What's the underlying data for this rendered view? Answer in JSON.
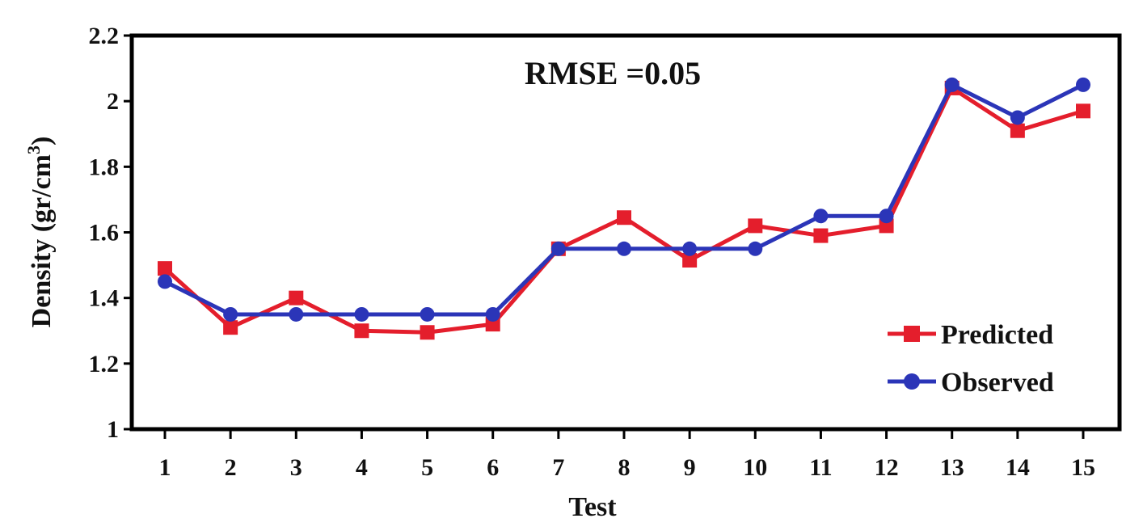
{
  "chart_data": {
    "type": "line",
    "xlabel": "Test",
    "ylabel_main": "Density (gr/cm",
    "ylabel_sup": "3",
    "ylabel_close": ")",
    "annotation": "RMSE =0.05",
    "x": [
      1,
      2,
      3,
      4,
      5,
      6,
      7,
      8,
      9,
      10,
      11,
      12,
      13,
      14,
      15
    ],
    "ylim": [
      1,
      2.2
    ],
    "yticks": [
      1,
      1.2,
      1.4,
      1.6,
      1.8,
      2,
      2.2
    ],
    "ytick_labels": [
      "1",
      "1.2",
      "1.4",
      "1.6",
      "1.8",
      "2",
      "2.2"
    ],
    "grid": false,
    "legend_position": "bottom-right",
    "series": [
      {
        "name": "Predicted",
        "color": "#e41e2c",
        "marker": "square",
        "values": [
          1.49,
          1.31,
          1.4,
          1.3,
          1.295,
          1.32,
          1.55,
          1.645,
          1.515,
          1.62,
          1.59,
          1.62,
          2.04,
          1.91,
          1.97
        ]
      },
      {
        "name": "Observed",
        "color": "#2b35b8",
        "marker": "circle",
        "values": [
          1.45,
          1.35,
          1.35,
          1.35,
          1.35,
          1.35,
          1.55,
          1.55,
          1.55,
          1.55,
          1.65,
          1.65,
          2.05,
          1.95,
          2.05
        ]
      }
    ]
  }
}
